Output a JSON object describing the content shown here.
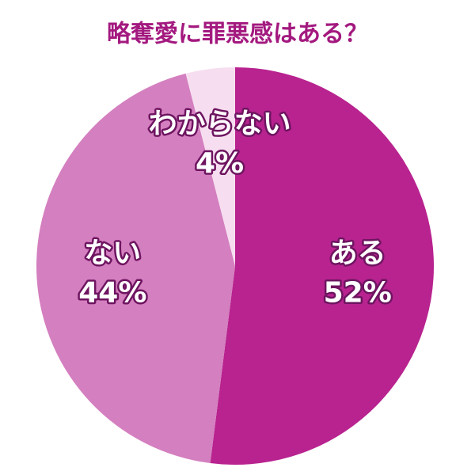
{
  "chart_data": {
    "type": "pie",
    "title": "略奪愛に罪悪感はある？",
    "categories": [
      "ある",
      "ない",
      "わからない"
    ],
    "values": [
      52,
      44,
      4
    ],
    "value_labels": [
      "52%",
      "44%",
      "4%"
    ],
    "colors": [
      "#b8238f",
      "#d47fbf",
      "#f6def0"
    ]
  }
}
